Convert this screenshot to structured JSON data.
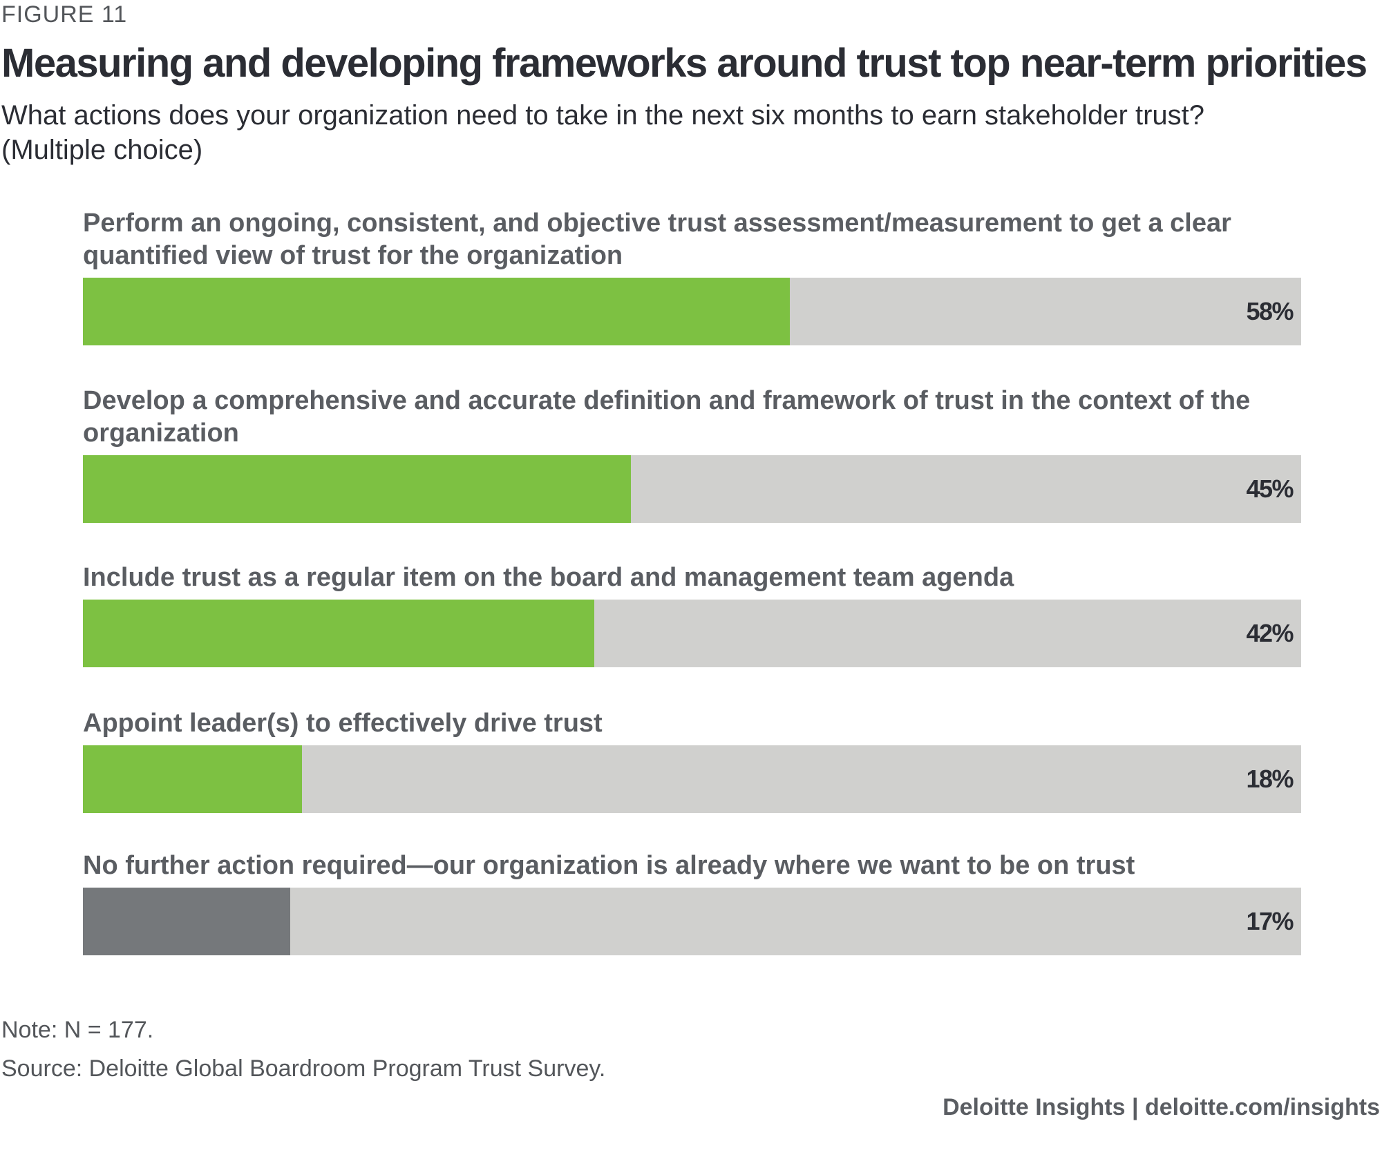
{
  "figure_label": "FIGURE 11",
  "footer": {
    "note": "Note: N = 177.",
    "source": "Source: Deloitte Global Boardroom Program Trust Survey.",
    "brand": "Deloitte Insights | deloitte.com/insights"
  },
  "colors": {
    "highlight": "#7dc142",
    "muted": "#75787b",
    "track": "#d0d0ce",
    "title": "#2b2d34",
    "text": "#53565a"
  },
  "chart_data": {
    "type": "bar",
    "orientation": "horizontal",
    "title": "Measuring and developing frameworks around trust top near-term priorities",
    "subtitle": "What actions does your organization need to take in the next six months to earn stakeholder trust? (Multiple choice)",
    "categories": [
      "Perform an ongoing, consistent, and objective trust assessment/measurement to get a clear quantified view of trust for the organization",
      "Develop a comprehensive and accurate definition and framework of trust in the context of the organization",
      "Include trust as a regular item on the board and management team agenda",
      "Appoint leader(s) to effectively drive trust",
      "No further action required—our organization is already where we want to be on trust"
    ],
    "values": [
      58,
      45,
      42,
      18,
      17
    ],
    "value_labels": [
      "58%",
      "45%",
      "42%",
      "18%",
      "17%"
    ],
    "bar_colors": [
      "#7dc142",
      "#7dc142",
      "#7dc142",
      "#7dc142",
      "#75787b"
    ],
    "xlim": [
      0,
      100
    ],
    "unit": "%",
    "grid": false,
    "legend": "none"
  }
}
